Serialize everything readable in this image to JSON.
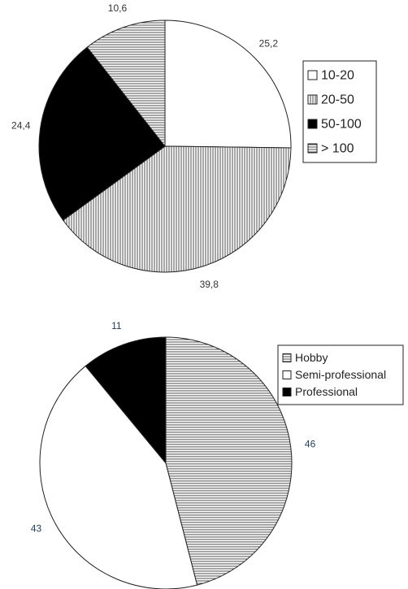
{
  "chart_data": [
    {
      "type": "pie",
      "categories": [
        "10-20",
        "20-50",
        "50-100",
        "> 100"
      ],
      "values": [
        25.2,
        39.8,
        24.4,
        10.6
      ],
      "value_labels": [
        "25,2",
        "39,8",
        "24,4",
        "10,6"
      ],
      "colors": [
        "#ffffff",
        "#ffffff",
        "#000000",
        "#ffffff"
      ],
      "hatches": [
        "none",
        "vertical",
        "none",
        "horizontal"
      ],
      "label_color": "#333333",
      "legend": "right"
    },
    {
      "type": "pie",
      "categories": [
        "Hobby",
        "Semi-professional",
        "Professional"
      ],
      "values": [
        46,
        43,
        11
      ],
      "colors": [
        "#ffffff",
        "#ffffff",
        "#000000"
      ],
      "hatches": [
        "horizontal",
        "none",
        "none"
      ],
      "label_color": "#1f3b57",
      "legend": "top-right"
    }
  ]
}
